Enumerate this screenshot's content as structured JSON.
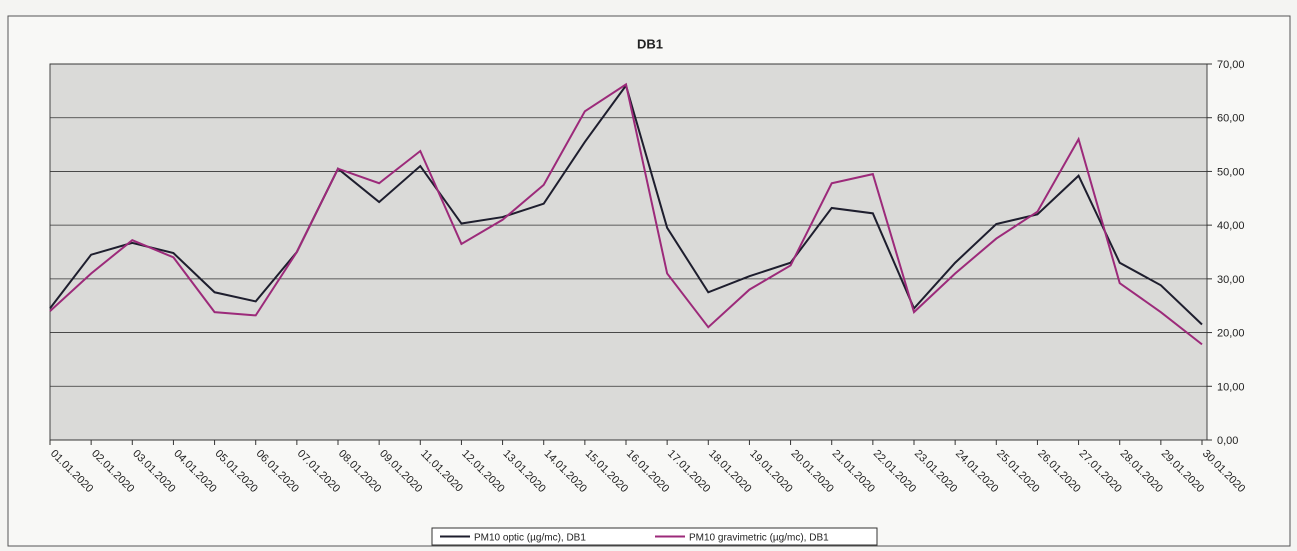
{
  "chart_data": {
    "type": "line",
    "title": "DB1",
    "categories": [
      "01.01.2020",
      "02.01.2020",
      "03.01.2020",
      "04.01.2020",
      "05.01.2020",
      "06.01.2020",
      "07.01.2020",
      "08.01.2020",
      "09.01.2020",
      "11.01.2020",
      "12.01.2020",
      "13.01.2020",
      "14.01.2020",
      "15.01.2020",
      "16.01.2020",
      "17.01.2020",
      "18.01.2020",
      "19.01.2020",
      "20.01.2020",
      "21.01.2020",
      "22.01.2020",
      "23.01.2020",
      "24.01.2020",
      "25.01.2020",
      "26.01.2020",
      "27.01.2020",
      "28.01.2020",
      "29.01.2020",
      "30.01.2020"
    ],
    "series": [
      {
        "name": "PM10 optic (µg/mc), DB1",
        "color": "#1e1e2e",
        "values": [
          24.5,
          34.5,
          36.7,
          34.8,
          27.5,
          25.8,
          35,
          50.5,
          44.3,
          51,
          40.3,
          41.5,
          44,
          55.5,
          66,
          39.5,
          27.5,
          30.5,
          33,
          43.2,
          42.2,
          24.5,
          33,
          40.2,
          42,
          49.2,
          33,
          28.8,
          21.5
        ]
      },
      {
        "name": "PM10 gravimetric (µg/mc), DB1",
        "color": "#9c2a7a",
        "values": [
          24,
          31,
          37.2,
          34,
          23.8,
          23.2,
          35,
          50.5,
          47.8,
          53.8,
          36.5,
          41,
          47.5,
          61.2,
          66.2,
          31,
          21,
          28,
          32.5,
          47.8,
          49.5,
          23.8,
          31,
          37.5,
          42.5,
          56,
          29.2,
          23.8,
          17.8
        ]
      }
    ],
    "ylim": [
      0,
      70
    ],
    "yticks": [
      {
        "value": 0,
        "label": "0,00"
      },
      {
        "value": 10,
        "label": "10,00"
      },
      {
        "value": 20,
        "label": "20,00"
      },
      {
        "value": 30,
        "label": "30,00"
      },
      {
        "value": 40,
        "label": "40,00"
      },
      {
        "value": 50,
        "label": "50,00"
      },
      {
        "value": 60,
        "label": "60,00"
      },
      {
        "value": 70,
        "label": "70,00"
      }
    ],
    "grid": true,
    "legend": "bottom"
  }
}
